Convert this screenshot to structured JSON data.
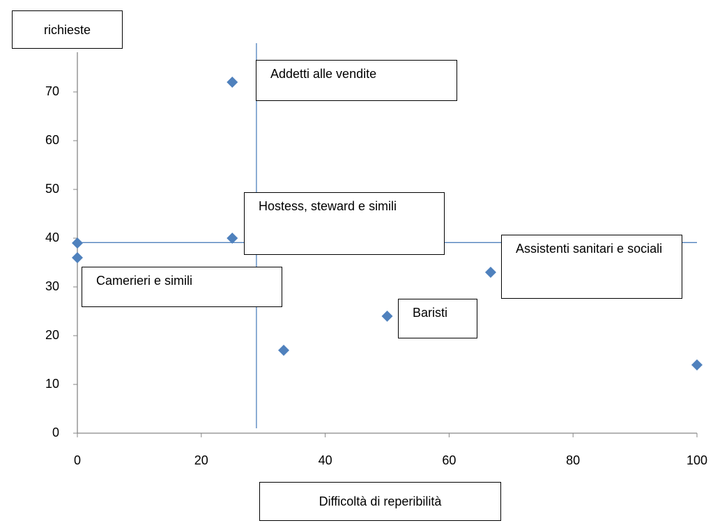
{
  "chart_data": {
    "type": "scatter",
    "x_label": "Difficoltà di reperibilità",
    "y_label": "richieste",
    "x": [
      25,
      25,
      0,
      0,
      66.7,
      50,
      33.3,
      100
    ],
    "series": [
      {
        "color": "#4f81bd",
        "values": [
          72,
          40,
          39,
          36,
          33,
          24,
          17,
          14
        ]
      }
    ],
    "xlim": [
      0,
      100
    ],
    "xticks": [
      0,
      20,
      40,
      60,
      80,
      100
    ],
    "ylim": [
      0,
      80
    ],
    "yticks": [
      0,
      10,
      20,
      30,
      40,
      50,
      60,
      70
    ],
    "reference_lines": {
      "x": 28.9,
      "y": 39.1,
      "color": "#4f81bd"
    },
    "annotations": [
      "Addetti alle vendite",
      "Hostess, steward e simili",
      "Camerieri e simili",
      "Assistenti sanitari e sociali",
      "Baristi"
    ]
  }
}
